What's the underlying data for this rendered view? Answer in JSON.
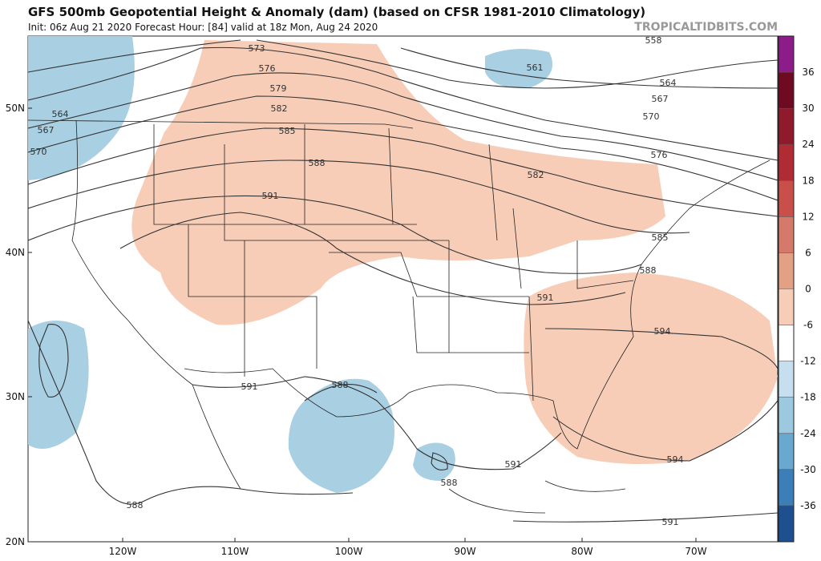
{
  "header": {
    "title": "GFS 500mb Geopotential Height & Anomaly (dam) (based on CFSR 1981-2010 Climatology)",
    "subtitle": "Init: 06z Aug 21 2020   Forecast Hour: [84]   valid at 18z Mon, Aug 24 2020",
    "watermark": "TROPICALTIDBITS.COM"
  },
  "map": {
    "lat_labels": [
      "50N",
      "40N",
      "30N",
      "20N"
    ],
    "lon_labels": [
      "120W",
      "110W",
      "100W",
      "90W",
      "80W",
      "70W"
    ],
    "contour_labels": [
      "573",
      "576",
      "579",
      "582",
      "585",
      "588",
      "591",
      "564",
      "567",
      "570",
      "558",
      "561",
      "564",
      "567",
      "570",
      "576",
      "582",
      "585",
      "588",
      "591",
      "594",
      "591",
      "588",
      "588",
      "591",
      "594",
      "588",
      "591"
    ]
  },
  "colorbar": {
    "ticks": [
      36,
      30,
      24,
      18,
      12,
      6,
      0,
      -6,
      -12,
      -18,
      -24,
      -30,
      -36
    ],
    "colors": [
      "#8c1c8a",
      "#6e0a22",
      "#8f1a2c",
      "#b02c35",
      "#c9504a",
      "#d57a6a",
      "#e3a085",
      "#f6cdb6",
      "#ffffff",
      "#c6dfee",
      "#9cc8e0",
      "#6aa8cf",
      "#3c7fb8",
      "#1e4f8f",
      "#0c2a5e"
    ]
  }
}
